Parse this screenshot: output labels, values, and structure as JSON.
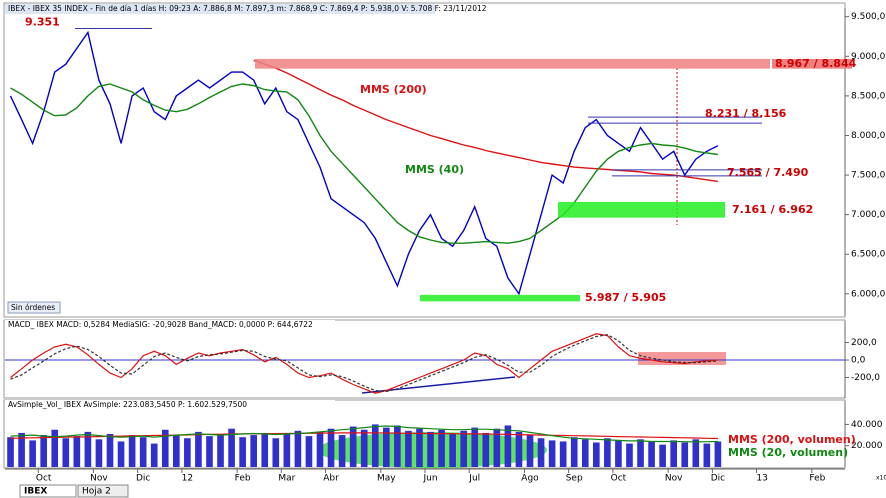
{
  "ui": {
    "tabs": [
      "IBEX",
      "Hoja 2"
    ],
    "status": "Sin órdenes",
    "scale_note": "x10"
  },
  "chart_data": [
    {
      "type": "line",
      "title": "IBEX - IBEX 35 INDEX - Fin de día 1 días  H: 09:23  A: 7.886,8  M: 7.897,3  m: 7.868,9  C: 7.869,4  P: 5.938,0  V: 5.708  F: 23/11/2012",
      "ylim": [
        5720,
        9610
      ],
      "yticks": [
        {
          "value": 6000,
          "label": "6.000,0"
        },
        {
          "value": 6500,
          "label": "6.500,0"
        },
        {
          "value": 7000,
          "label": "7.000,0"
        },
        {
          "value": 7500,
          "label": "7.500,0"
        },
        {
          "value": 8000,
          "label": "8.000,0"
        },
        {
          "value": 8500,
          "label": "8.500,0"
        },
        {
          "value": 9000,
          "label": "9.000,0"
        },
        {
          "value": 9500,
          "label": "9.500,0"
        }
      ],
      "series": [
        {
          "color": "#0000cc",
          "values": [
            8500,
            8200,
            7900,
            8300,
            8800,
            8900,
            9100,
            9300,
            8700,
            8400,
            7900,
            8500,
            8600,
            8300,
            8200,
            8500,
            8600,
            8700,
            8600,
            8700,
            8800,
            8800,
            8700,
            8400,
            8600,
            8300,
            8200,
            7900,
            7600,
            7200,
            7100,
            7000,
            6900,
            6700,
            6400,
            6100,
            6500,
            6800,
            7000,
            6700,
            6600,
            6800,
            7100,
            6700,
            6600,
            6200,
            6000,
            6500,
            7000,
            7500,
            7400,
            7800,
            8100,
            8200,
            8000,
            7900,
            7800,
            8100,
            7900,
            7700,
            7800,
            7500,
            7700,
            7800,
            7870,
            null,
            null,
            null,
            null,
            null,
            null,
            null,
            null,
            null,
            null,
            null
          ]
        },
        {
          "name": "MMS (200)",
          "color": "#dd1111",
          "values": [
            null,
            null,
            null,
            null,
            null,
            null,
            null,
            null,
            null,
            null,
            null,
            null,
            null,
            null,
            null,
            null,
            null,
            null,
            null,
            null,
            null,
            null,
            8950,
            8900,
            8850,
            8790,
            8720,
            8650,
            8580,
            8510,
            8450,
            8380,
            8320,
            8260,
            8200,
            8150,
            8100,
            8050,
            8000,
            7960,
            7920,
            7880,
            7850,
            7810,
            7780,
            7750,
            7720,
            7690,
            7660,
            7640,
            7620,
            7600,
            7590,
            7580,
            7570,
            7560,
            7550,
            7540,
            7520,
            7510,
            7500,
            7480,
            7460,
            7440,
            7420,
            null,
            null,
            null,
            null,
            null,
            null,
            null,
            null,
            null,
            null,
            null
          ]
        },
        {
          "name": "MMS (40)",
          "color": "#118811",
          "values": [
            8600,
            8520,
            8420,
            8320,
            8250,
            8260,
            8350,
            8500,
            8620,
            8650,
            8600,
            8550,
            8450,
            8380,
            8320,
            8300,
            8330,
            8400,
            8480,
            8550,
            8620,
            8650,
            8630,
            8580,
            8560,
            8550,
            8450,
            8250,
            8000,
            7800,
            7650,
            7500,
            7350,
            7200,
            7050,
            6900,
            6800,
            6720,
            6680,
            6650,
            6640,
            6640,
            6650,
            6660,
            6650,
            6640,
            6660,
            6700,
            6800,
            6900,
            7000,
            7150,
            7350,
            7550,
            7700,
            7800,
            7850,
            7880,
            7900,
            7880,
            7870,
            7840,
            7800,
            7780,
            7760,
            null,
            null,
            null,
            null,
            null,
            null,
            null,
            null,
            null,
            null,
            null
          ]
        }
      ],
      "levels": [
        {
          "text": "9.351",
          "values": [
            9351
          ]
        },
        {
          "text": "8.231 / 8.156",
          "values": [
            8231,
            8156
          ]
        },
        {
          "text": "7.565 / 7.490",
          "values": [
            7565,
            7490
          ]
        }
      ],
      "zones": [
        {
          "text": "8.967 / 8.844",
          "values": [
            8967,
            8844
          ],
          "color": "#f08080"
        },
        {
          "text": "7.161 / 6.962",
          "values": [
            7161,
            6962
          ],
          "color": "#22ee22"
        },
        {
          "text": "5.987 / 5.905",
          "values": [
            5987,
            5905
          ],
          "color": "#22ee22"
        }
      ]
    },
    {
      "type": "line",
      "title": "MACD_ IBEX  MACD: 0,5284  MediaSIG: -20,9028  Band_MACD: 0,0000  P: 644,6722",
      "ylim": [
        -435,
        447
      ],
      "yticks": [
        {
          "value": -200,
          "label": "-200,0"
        },
        {
          "value": 0,
          "label": "0,0"
        },
        {
          "value": 200,
          "label": "200,0"
        }
      ],
      "series": [
        {
          "color": "#dd1111",
          "values": [
            -200,
            -100,
            0,
            80,
            150,
            180,
            150,
            60,
            -50,
            -150,
            -200,
            -100,
            50,
            100,
            50,
            -50,
            20,
            80,
            50,
            80,
            100,
            120,
            60,
            -20,
            30,
            -50,
            -150,
            -200,
            -180,
            -150,
            -220,
            -280,
            -330,
            -380,
            -350,
            -300,
            -250,
            -200,
            -150,
            -100,
            -50,
            0,
            80,
            50,
            -50,
            -100,
            -200,
            -100,
            0,
            100,
            150,
            200,
            250,
            300,
            280,
            150,
            50,
            20,
            0,
            -20,
            -30,
            -40,
            -20,
            -10,
            0,
            null,
            null,
            null,
            null,
            null,
            null,
            null,
            null,
            null,
            null,
            null
          ]
        },
        {
          "color": "#333333",
          "dash": true,
          "values": [
            -220,
            -170,
            -90,
            -10,
            70,
            130,
            160,
            120,
            40,
            -60,
            -150,
            -160,
            -60,
            40,
            80,
            30,
            -10,
            40,
            60,
            70,
            90,
            110,
            100,
            40,
            10,
            -10,
            -90,
            -170,
            -190,
            -170,
            -190,
            -240,
            -300,
            -350,
            -360,
            -330,
            -280,
            -230,
            -180,
            -130,
            -80,
            -30,
            30,
            60,
            10,
            -60,
            -140,
            -140,
            -60,
            40,
            110,
            170,
            220,
            270,
            290,
            220,
            110,
            50,
            20,
            0,
            -20,
            -30,
            -30,
            -20,
            -10,
            null,
            null,
            null,
            null,
            null,
            null,
            null,
            null,
            null,
            null,
            null
          ]
        }
      ]
    },
    {
      "type": "bar",
      "title": "AvSimple_Vol_ IBEX  AvSimple: 223.083,5450  P: 1.602.529,7500",
      "ylim": [
        0,
        62000
      ],
      "yticks": [
        {
          "value": 20000,
          "label": "20.000"
        },
        {
          "value": 40000,
          "label": "40.000"
        }
      ],
      "categories": [
        null,
        null,
        null,
        "Oct",
        null,
        null,
        null,
        null,
        "Nov",
        null,
        null,
        null,
        "Dic",
        null,
        null,
        null,
        "12",
        null,
        null,
        null,
        null,
        "Feb",
        null,
        null,
        null,
        "Mar",
        null,
        null,
        null,
        "Abr",
        null,
        null,
        null,
        null,
        "May",
        null,
        null,
        null,
        "Jun",
        null,
        null,
        null,
        "Jul",
        null,
        null,
        null,
        null,
        "Ago",
        null,
        null,
        null,
        "Sep",
        null,
        null,
        null,
        "Oct",
        null,
        null,
        null,
        null,
        "Nov",
        null,
        null,
        null,
        "Dic",
        null,
        null,
        null,
        "13",
        null,
        null,
        null,
        null,
        "Feb",
        null,
        null
      ],
      "color": "#3030cc",
      "values": [
        28000,
        32000,
        25000,
        30000,
        35000,
        27000,
        29000,
        33000,
        26000,
        31000,
        24000,
        30000,
        28000,
        22000,
        35000,
        30000,
        27000,
        33000,
        29000,
        31000,
        36000,
        28000,
        30000,
        32000,
        27000,
        31000,
        34000,
        29000,
        33000,
        36000,
        30000,
        38000,
        35000,
        40000,
        37000,
        39000,
        34000,
        36000,
        33000,
        35000,
        31000,
        34000,
        37000,
        32000,
        36000,
        39000,
        33000,
        30000,
        27000,
        25000,
        24000,
        28000,
        26000,
        23000,
        27000,
        25000,
        22000,
        26000,
        24000,
        21000,
        25000,
        23000,
        26000,
        22000,
        24000,
        null,
        null,
        null,
        null,
        null,
        null,
        null,
        null,
        null,
        null,
        null
      ],
      "series": [
        {
          "name": "MMS (200, volumen)",
          "color": "#dd1111",
          "values": [
            27000,
            27200,
            27400,
            27600,
            27800,
            28000,
            28200,
            28400,
            28600,
            28800,
            29000,
            29200,
            29400,
            29600,
            29800,
            30000,
            30200,
            30400,
            30600,
            30800,
            31000,
            31100,
            31200,
            31300,
            31400,
            31500,
            31600,
            31700,
            31800,
            31900,
            32000,
            32000,
            32000,
            32000,
            31900,
            31800,
            31700,
            31600,
            31500,
            31400,
            31300,
            31200,
            31100,
            31000,
            30800,
            30600,
            30400,
            30200,
            30000,
            29800,
            29600,
            29400,
            29200,
            29000,
            28800,
            28600,
            28400,
            28200,
            28000,
            27800,
            27600,
            27400,
            27200,
            27000,
            26800,
            null,
            null,
            null,
            null,
            null,
            null,
            null,
            null,
            null,
            null,
            null
          ]
        },
        {
          "name": "MMS (20, volumen)",
          "color": "#118811",
          "values": [
            29000,
            29500,
            30000,
            29000,
            28500,
            29000,
            30000,
            30500,
            29500,
            28500,
            28000,
            28500,
            29000,
            28000,
            29000,
            30000,
            30500,
            31000,
            30500,
            30000,
            30500,
            31000,
            31500,
            31000,
            30500,
            31000,
            31500,
            32000,
            33000,
            34000,
            35000,
            36000,
            37000,
            38000,
            38500,
            38000,
            37000,
            36500,
            36000,
            35500,
            35000,
            35000,
            35500,
            35500,
            35000,
            34500,
            34000,
            32500,
            31000,
            29500,
            28000,
            27000,
            26500,
            26000,
            25500,
            25000,
            24500,
            24500,
            24000,
            24000,
            24000,
            23800,
            23600,
            23800,
            24000,
            null,
            null,
            null,
            null,
            null,
            null,
            null,
            null,
            null,
            null,
            null
          ]
        }
      ]
    }
  ]
}
